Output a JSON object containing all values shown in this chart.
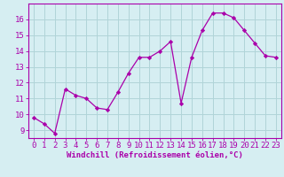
{
  "x": [
    0,
    1,
    2,
    3,
    4,
    5,
    6,
    7,
    8,
    9,
    10,
    11,
    12,
    13,
    14,
    15,
    16,
    17,
    18,
    19,
    20,
    21,
    22,
    23
  ],
  "y": [
    9.8,
    9.4,
    8.8,
    11.6,
    11.2,
    11.0,
    10.4,
    10.3,
    11.4,
    12.6,
    13.6,
    13.6,
    14.0,
    14.6,
    10.7,
    13.6,
    15.3,
    16.4,
    16.4,
    16.1,
    15.3,
    14.5,
    13.7,
    13.6
  ],
  "line_color": "#aa00aa",
  "marker": "D",
  "marker_size": 2.2,
  "bg_color": "#d6eef2",
  "grid_color": "#b0d4d8",
  "xlabel": "Windchill (Refroidissement éolien,°C)",
  "xlim": [
    -0.5,
    23.5
  ],
  "ylim": [
    8.5,
    17.0
  ],
  "yticks": [
    9,
    10,
    11,
    12,
    13,
    14,
    15,
    16
  ],
  "xticks": [
    0,
    1,
    2,
    3,
    4,
    5,
    6,
    7,
    8,
    9,
    10,
    11,
    12,
    13,
    14,
    15,
    16,
    17,
    18,
    19,
    20,
    21,
    22,
    23
  ],
  "xlabel_fontsize": 6.5,
  "tick_fontsize": 6.5,
  "tick_color": "#aa00aa",
  "axis_color": "#aa00aa",
  "spine_color": "#aa00aa"
}
